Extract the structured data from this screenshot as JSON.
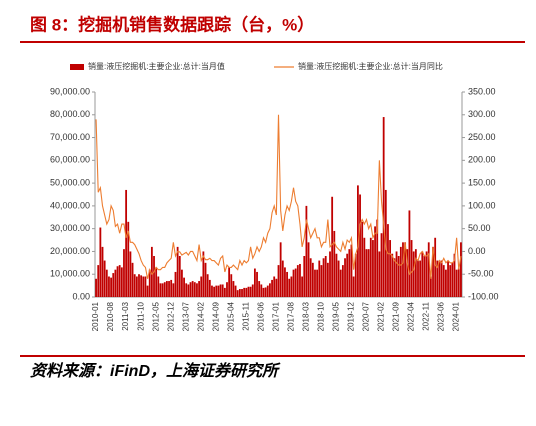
{
  "chart_data": {
    "type": "bar-line",
    "title": "图 8：挖掘机销售数据跟踪（台，%）",
    "source": "资料来源：iFinD，上海证券研究所",
    "categories": [
      "2010-01",
      null,
      null,
      null,
      null,
      null,
      null,
      "2010-08",
      null,
      null,
      null,
      null,
      null,
      null,
      "2011-03",
      null,
      null,
      null,
      null,
      null,
      null,
      "2011-10",
      null,
      null,
      null,
      null,
      null,
      null,
      "2012-05",
      null,
      null,
      null,
      null,
      null,
      null,
      "2012-12",
      null,
      null,
      null,
      null,
      null,
      null,
      "2013-07",
      null,
      null,
      null,
      null,
      null,
      null,
      "2014-02",
      null,
      null,
      null,
      null,
      null,
      null,
      "2014-09",
      null,
      null,
      null,
      null,
      null,
      null,
      "2015-04",
      null,
      null,
      null,
      null,
      null,
      null,
      "2015-11",
      null,
      null,
      null,
      null,
      null,
      null,
      "2016-06",
      null,
      null,
      null,
      null,
      null,
      null,
      "2017-01",
      null,
      null,
      null,
      null,
      null,
      null,
      "2017-08",
      null,
      null,
      null,
      null,
      null,
      null,
      "2018-03",
      null,
      null,
      null,
      null,
      null,
      null,
      "2018-10",
      null,
      null,
      null,
      null,
      null,
      null,
      "2019-05",
      null,
      null,
      null,
      null,
      null,
      null,
      "2019-12",
      null,
      null,
      null,
      null,
      null,
      null,
      "2020-07",
      null,
      null,
      null,
      null,
      null,
      null,
      "2021-02",
      null,
      null,
      null,
      null,
      null,
      null,
      "2021-09",
      null,
      null,
      null,
      null,
      null,
      null,
      "2022-04",
      null,
      null,
      null,
      null,
      null,
      null,
      "2022-11",
      null,
      null,
      null,
      null,
      null,
      null,
      "2023-06",
      null,
      null,
      null,
      null,
      null,
      null,
      "2024-01",
      null,
      null
    ],
    "series": [
      {
        "name": "销量:液压挖掘机:主要企业:总计:当月值",
        "type": "bar",
        "color": "#c00000",
        "values": [
          8000,
          14000,
          30500,
          22000,
          16000,
          12000,
          9000,
          8500,
          10500,
          12000,
          13500,
          14000,
          13000,
          21000,
          47000,
          33000,
          20000,
          15000,
          10000,
          9000,
          10000,
          9500,
          9000,
          9000,
          5000,
          12000,
          22000,
          18000,
          13000,
          9000,
          6000,
          6000,
          6500,
          7000,
          7000,
          7500,
          6000,
          11000,
          22000,
          18000,
          12000,
          8500,
          6000,
          5500,
          6500,
          7000,
          6500,
          6000,
          7000,
          9000,
          20000,
          15000,
          10000,
          7500,
          5000,
          4500,
          5000,
          5000,
          5500,
          5500,
          4000,
          6500,
          13000,
          10000,
          7000,
          5000,
          3000,
          3500,
          3500,
          4000,
          4000,
          4500,
          4500,
          5500,
          12500,
          11000,
          7000,
          5500,
          4000,
          4200,
          5000,
          6000,
          7500,
          9000,
          8000,
          14000,
          24000,
          16000,
          13000,
          11000,
          8000,
          9000,
          12000,
          12500,
          14000,
          14500,
          9000,
          18000,
          40000,
          24000,
          17000,
          15000,
          12000,
          12000,
          16000,
          14000,
          17000,
          18000,
          15000,
          20000,
          44000,
          29000,
          19000,
          16000,
          12000,
          14000,
          17000,
          19000,
          21000,
          23000,
          9000,
          19000,
          49000,
          45000,
          33000,
          26000,
          21000,
          21000,
          26000,
          25000,
          31000,
          34000,
          20000,
          28000,
          79000,
          47000,
          32000,
          25000,
          19000,
          17000,
          20000,
          18000,
          22000,
          24000,
          24000,
          21000,
          38000,
          25000,
          20000,
          21000,
          16000,
          16000,
          20000,
          18000,
          20000,
          24000,
          9000,
          22000,
          26000,
          16000,
          16000,
          16000,
          14000,
          12000,
          16000,
          14000,
          15000,
          19000,
          12000,
          12500,
          24000
        ]
      },
      {
        "name": "销量:液压挖掘机:主要企业:总计:当月同比",
        "type": "line",
        "axis": "y2",
        "color": "#ed7d31",
        "values": [
          290,
          130,
          140,
          100,
          80,
          60,
          70,
          100,
          90,
          55,
          60,
          40,
          60,
          60,
          30,
          45,
          20,
          20,
          15,
          5,
          -5,
          -20,
          -30,
          -35,
          -60,
          -40,
          -50,
          -45,
          -35,
          -40,
          -40,
          -35,
          -35,
          -25,
          -20,
          -15,
          20,
          -10,
          0,
          -1,
          -8,
          -5,
          -2,
          -8,
          0,
          0,
          -10,
          -20,
          15,
          -20,
          -10,
          -18,
          -18,
          -15,
          -20,
          -20,
          -25,
          -30,
          -15,
          -10,
          -45,
          -30,
          -35,
          -35,
          -30,
          -35,
          -40,
          -20,
          -30,
          -20,
          -25,
          -20,
          10,
          -15,
          -5,
          10,
          0,
          10,
          30,
          20,
          40,
          50,
          85,
          100,
          80,
          300,
          90,
          45,
          80,
          100,
          90,
          110,
          140,
          110,
          100,
          60,
          10,
          30,
          70,
          50,
          30,
          40,
          50,
          30,
          30,
          10,
          20,
          20,
          70,
          10,
          15,
          20,
          10,
          5,
          0,
          20,
          5,
          25,
          20,
          30,
          -40,
          -5,
          10,
          60,
          70,
          60,
          70,
          50,
          60,
          30,
          40,
          40,
          200,
          110,
          60,
          5,
          -5,
          -5,
          -10,
          -20,
          -25,
          -30,
          -30,
          -25,
          20,
          -25,
          -50,
          -45,
          -40,
          -15,
          -20,
          -5,
          0,
          -10,
          -10,
          -5,
          -60,
          10,
          -30,
          -35,
          -20,
          -25,
          -15,
          -25,
          -20,
          -25,
          -25,
          -20,
          30,
          -40,
          -10
        ]
      }
    ],
    "ylim": [
      0,
      90000
    ],
    "yticks": [
      {
        "value": 0,
        "label": "0.00"
      },
      {
        "value": 10000,
        "label": "10,000.00"
      },
      {
        "value": 20000,
        "label": "20,000.00"
      },
      {
        "value": 30000,
        "label": "30,000.00"
      },
      {
        "value": 40000,
        "label": "40,000.00"
      },
      {
        "value": 50000,
        "label": "50,000.00"
      },
      {
        "value": 60000,
        "label": "60,000.00"
      },
      {
        "value": 70000,
        "label": "70,000.00"
      },
      {
        "value": 80000,
        "label": "80,000.00"
      },
      {
        "value": 90000,
        "label": "90,000.00"
      }
    ],
    "y2lim": [
      -100,
      350
    ],
    "y2ticks": [
      {
        "value": -100,
        "label": "-100.00"
      },
      {
        "value": -50,
        "label": "-50.00"
      },
      {
        "value": 0,
        "label": "0.00"
      },
      {
        "value": 50,
        "label": "50.00"
      },
      {
        "value": 100,
        "label": "100.00"
      },
      {
        "value": 150,
        "label": "150.00"
      },
      {
        "value": 200,
        "label": "200.00"
      },
      {
        "value": 250,
        "label": "250.00"
      },
      {
        "value": 300,
        "label": "300.00"
      },
      {
        "value": 350,
        "label": "350.00"
      }
    ]
  }
}
